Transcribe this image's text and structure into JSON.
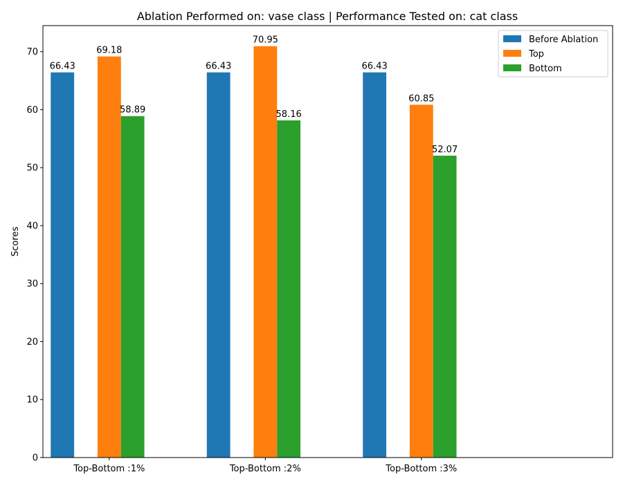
{
  "chart_data": {
    "type": "bar",
    "title": "Ablation Performed on: vase class | Performance Tested on: cat class",
    "xlabel": "",
    "ylabel": "Scores",
    "categories": [
      "Top-Bottom :1%",
      "Top-Bottom :2%",
      "Top-Bottom :3%"
    ],
    "series": [
      {
        "name": "Before Ablation",
        "color": "#1f77b4",
        "values": [
          66.43,
          66.43,
          66.43
        ]
      },
      {
        "name": "Top",
        "color": "#ff7f0e",
        "values": [
          69.18,
          70.95,
          60.85
        ]
      },
      {
        "name": "Bottom",
        "color": "#2ca02c",
        "values": [
          58.89,
          58.16,
          52.07
        ]
      }
    ],
    "value_labels": [
      [
        "66.43",
        "66.43",
        "66.43"
      ],
      [
        "69.18",
        "70.95",
        "60.85"
      ],
      [
        "58.89",
        "58.16",
        "52.07"
      ]
    ],
    "ylim": [
      0,
      74.5
    ],
    "yticks": [
      0,
      10,
      20,
      30,
      40,
      50,
      60,
      70
    ],
    "ytick_labels": [
      "0",
      "10",
      "20",
      "30",
      "40",
      "50",
      "60",
      "70"
    ],
    "grid": false,
    "legend_position": "top-right"
  }
}
